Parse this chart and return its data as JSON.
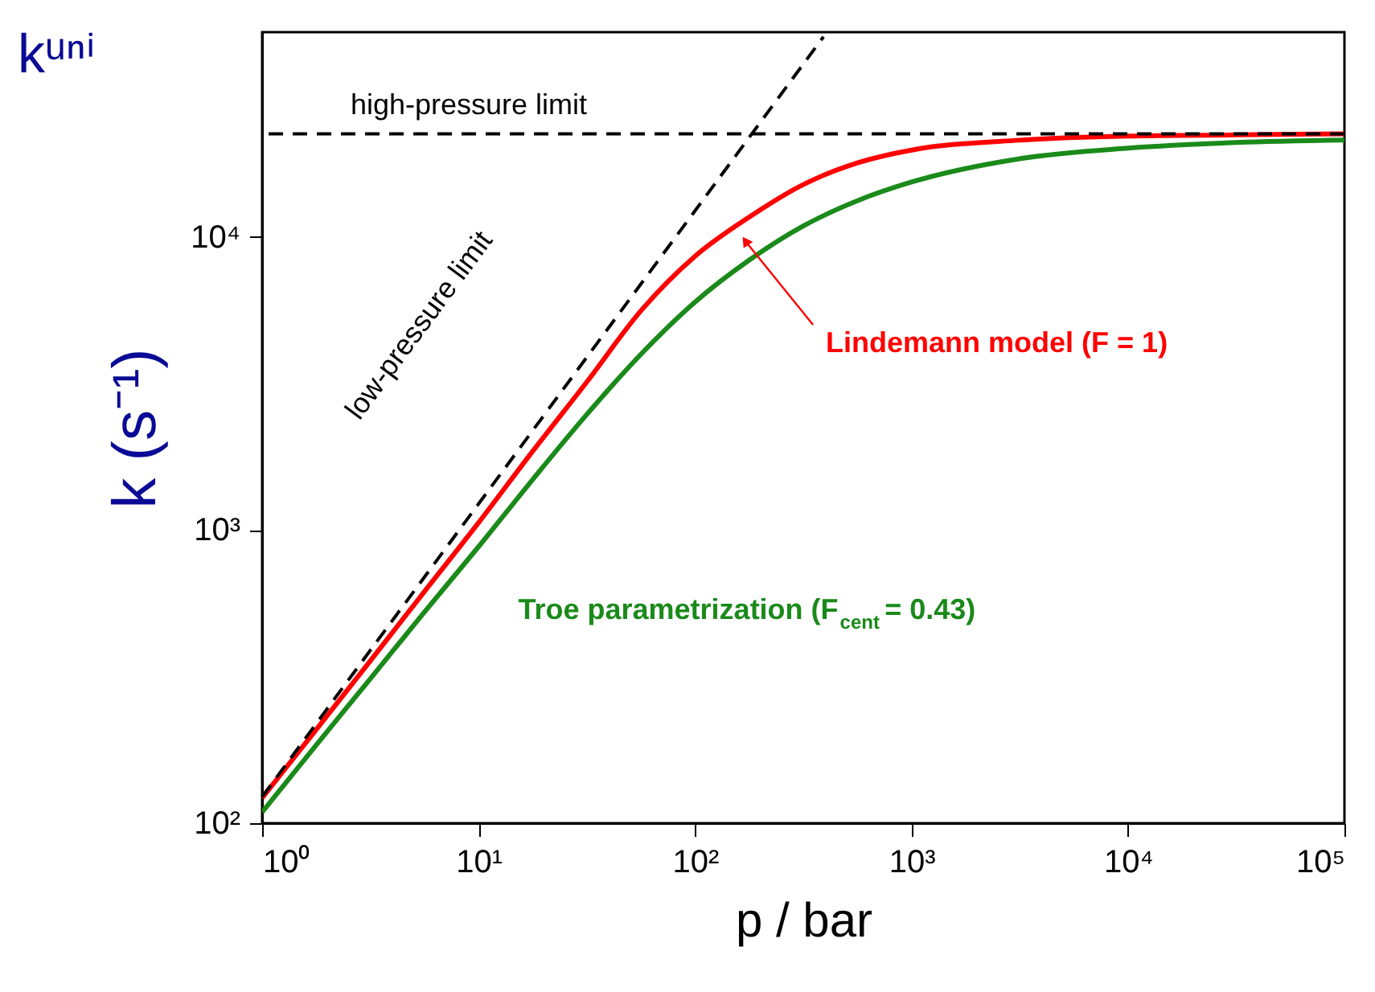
{
  "chart_data": {
    "type": "line",
    "title": "kᵘⁿⁱ",
    "xlabel": "p / bar",
    "ylabel": "k (s⁻¹)",
    "x": [
      1,
      1.78,
      3.16,
      5.62,
      10,
      17.8,
      31.6,
      56.2,
      100,
      178,
      316,
      562,
      1000,
      3160,
      10000,
      31600,
      100000
    ],
    "series": [
      {
        "name": "Lindemann model (F = 1)",
        "color": "#ff0000",
        "values": [
          122,
          209,
          358,
          617,
          1060,
          1860,
          3200,
          5600,
          8600,
          11700,
          15100,
          17900,
          19800,
          21400,
          22100,
          22300,
          22500
        ]
      },
      {
        "name": "Troe parametrization (F$_{cent}$ = 0.43)",
        "color": "#1a8a1a",
        "values": [
          109,
          185,
          311,
          525,
          878,
          1490,
          2480,
          3980,
          6000,
          8340,
          10900,
          13300,
          15400,
          18500,
          20100,
          21000,
          21400
        ]
      },
      {
        "name": "low-pressure limit",
        "type": "line",
        "line_style": "dashed",
        "color": "#000000",
        "x": [
          1,
          392
        ],
        "values": [
          123,
          48200
        ]
      }
    ],
    "ref_lines": [
      {
        "axis": "y",
        "value": 22500,
        "label": "high-pressure limit",
        "color": "#000000",
        "line_style": "dashed"
      }
    ],
    "log": "xy",
    "xlim": [
      1,
      100000
    ],
    "ylim": [
      100,
      50000
    ],
    "xticks": [
      {
        "value": 1,
        "label": "10⁰"
      },
      {
        "value": 10,
        "label": "10¹"
      },
      {
        "value": 100,
        "label": "10²"
      },
      {
        "value": 1000,
        "label": "10³"
      },
      {
        "value": 10000,
        "label": "10⁴"
      },
      {
        "value": 100000,
        "label": "10⁵"
      }
    ],
    "yticks": [
      {
        "value": 100,
        "label": "10²"
      },
      {
        "value": 1000,
        "label": "10³"
      },
      {
        "value": 10000,
        "label": "10⁴"
      }
    ],
    "grid": false,
    "line_style": "solid",
    "marker": "none"
  }
}
